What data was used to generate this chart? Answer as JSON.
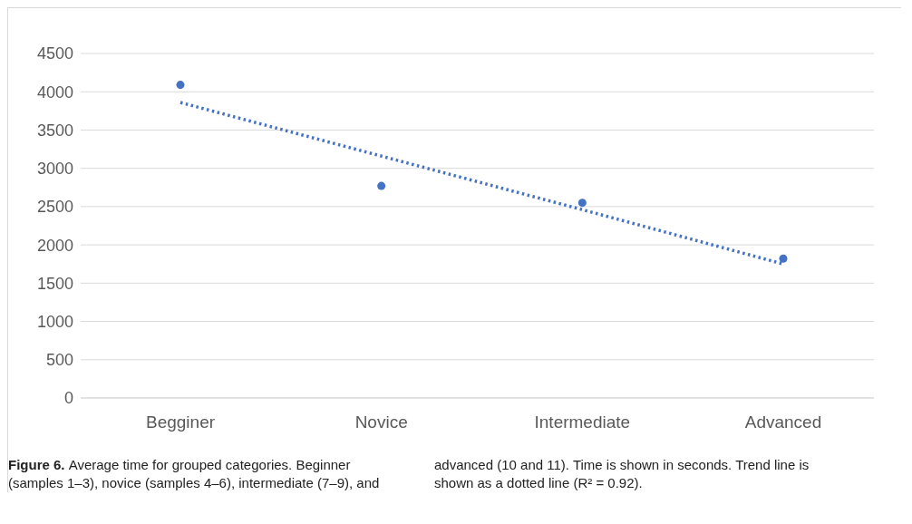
{
  "chart_data": {
    "type": "scatter",
    "categories": [
      "Begginer",
      "Novice",
      "Intermediate",
      "Advanced"
    ],
    "series": [
      {
        "color": "#4472c4",
        "marker": "circle",
        "values": [
          4090,
          2770,
          2550,
          1820
        ]
      },
      {
        "type": "line",
        "color": "#4472c4",
        "marker": "none",
        "line_style": "dotted",
        "x": [
          "Begginer",
          "Novice",
          "Intermediate",
          "Advanced"
        ],
        "values": [
          3860,
          3160,
          2460,
          1750
        ]
      }
    ],
    "ylim": [
      0,
      4500
    ],
    "yticks": [
      0,
      500,
      1000,
      1500,
      2000,
      2500,
      3000,
      3500,
      4000,
      4500
    ],
    "grid": "y",
    "legend": false,
    "annotations": [
      "Figure 6.",
      "Average time for grouped categories. Beginner (samples 1–3), novice (samples 4–6), intermediate (7–9), and advanced (10 and 11). Time is shown in seconds. Trend line is shown as a dotted line (R² = 0.92)."
    ]
  }
}
